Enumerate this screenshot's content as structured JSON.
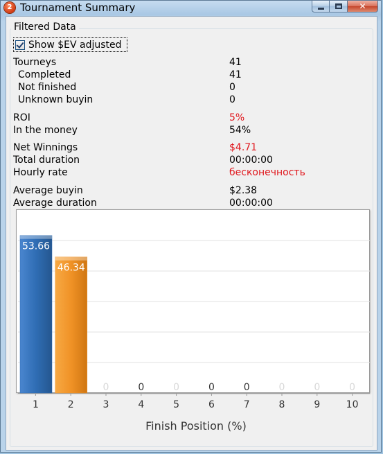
{
  "window": {
    "title": "Tournament Summary",
    "app_icon_text": "2",
    "close_glyph": "✕"
  },
  "filtered": {
    "group_title": "Filtered Data",
    "show_sev_label": "Show $EV adjusted",
    "show_sev_checked": true
  },
  "stats": {
    "tourneys": {
      "label": "Tourneys",
      "value": "41"
    },
    "completed": {
      "label": "Completed",
      "value": "41"
    },
    "not_finished": {
      "label": "Not finished",
      "value": "0"
    },
    "unknown_buyin": {
      "label": "Unknown buyin",
      "value": "0"
    },
    "roi": {
      "label": "ROI",
      "value": "5%"
    },
    "in_the_money": {
      "label": "In the money",
      "value": "54%"
    },
    "net_winnings": {
      "label": "Net Winnings",
      "value": "$4.71"
    },
    "total_duration": {
      "label": "Total duration",
      "value": "00:00:00"
    },
    "hourly_rate": {
      "label": "Hourly rate",
      "value": "бесконечность"
    },
    "average_buyin": {
      "label": "Average buyin",
      "value": "$2.38"
    },
    "average_duration": {
      "label": "Average duration",
      "value": "00:00:00"
    }
  },
  "colors": {
    "red_value": "#e0161c",
    "bar_blue": "#2f6db4",
    "bar_orange": "#f09226",
    "zero_label_faded": "#d8d8d8"
  },
  "chart_data": {
    "type": "bar",
    "categories": [
      "1",
      "2",
      "3",
      "4",
      "5",
      "6",
      "7",
      "8",
      "9",
      "10"
    ],
    "values": [
      53.66,
      46.34,
      0,
      0,
      0,
      0,
      0,
      0,
      0,
      0
    ],
    "data_labels": [
      "53.66",
      "46.34",
      "0",
      "0",
      "0",
      "0",
      "0",
      "0",
      "0",
      "0"
    ],
    "faded_labels": [
      false,
      false,
      true,
      false,
      true,
      false,
      false,
      true,
      true,
      true
    ],
    "bar_colors": [
      "#2f6db4",
      "#f09226",
      "#2f6db4",
      "#2f6db4",
      "#2f6db4",
      "#2f6db4",
      "#2f6db4",
      "#2f6db4",
      "#2f6db4",
      "#2f6db4"
    ],
    "xlabel": "Finish Position (%)",
    "ylabel": "",
    "ylim": [
      0,
      55
    ],
    "grid": true
  }
}
